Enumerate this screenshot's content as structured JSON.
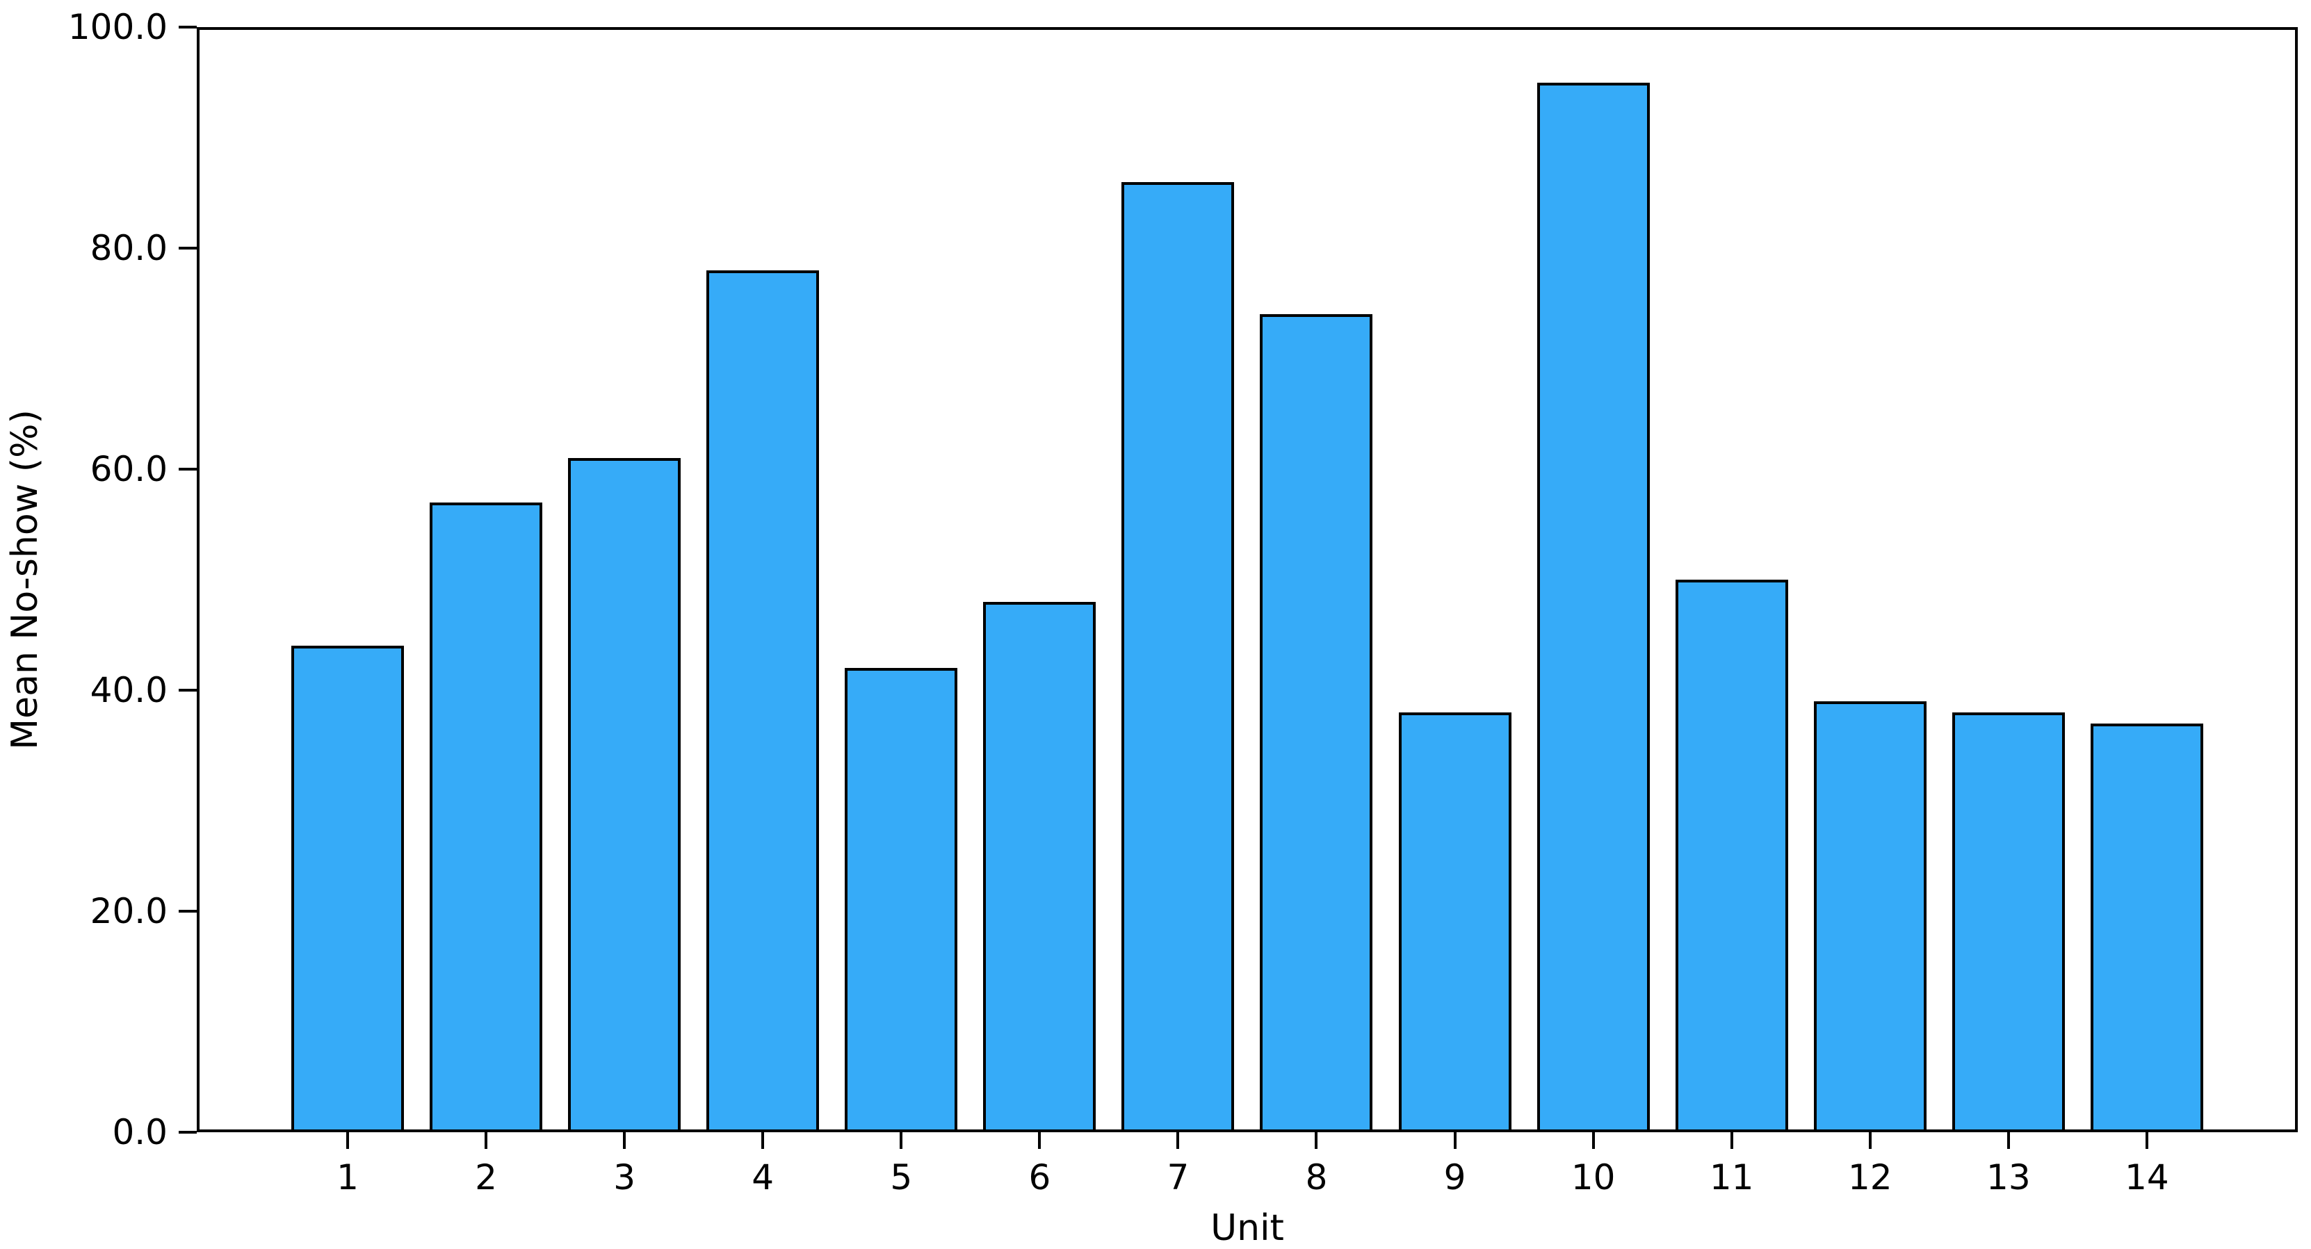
{
  "chart_data": {
    "type": "bar",
    "title": "",
    "xlabel": "Unit",
    "ylabel": "Mean No-show (%)",
    "categories": [
      "1",
      "2",
      "3",
      "4",
      "5",
      "6",
      "7",
      "8",
      "9",
      "10",
      "11",
      "12",
      "13",
      "14"
    ],
    "values": [
      44,
      57,
      61,
      78,
      42,
      48,
      86,
      74,
      38,
      95,
      50,
      39,
      38,
      37
    ],
    "y_tick_labels": [
      "0.0",
      "20.0",
      "40.0",
      "60.0",
      "80.0",
      "100.0"
    ],
    "y_tick_values": [
      0,
      20,
      40,
      60,
      80,
      100
    ],
    "ylim": [
      0,
      100
    ],
    "grid": false,
    "legend_position": "none",
    "bar_color": "#36ABF8",
    "bar_edge_color": "#000000",
    "axis_color": "#000000"
  }
}
